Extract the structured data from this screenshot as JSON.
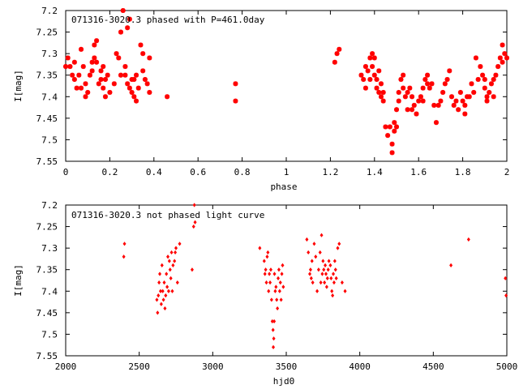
{
  "colors": {
    "points": "#ff0000",
    "axes": "#000000",
    "background": "#ffffff"
  },
  "chart_data": [
    {
      "type": "scatter",
      "title": "071316-3020.3 phased with P=461.0day",
      "xlabel": "phase",
      "ylabel": "I[mag]",
      "xlim": [
        0,
        2
      ],
      "ylim": [
        7.2,
        7.55
      ],
      "y_inverted": true,
      "grid": false,
      "marker": "asterisk",
      "xticks": [
        "0",
        "0.2",
        "0.4",
        "0.6",
        "0.8",
        "1",
        "1.2",
        "1.4",
        "1.6",
        "1.8",
        "2"
      ],
      "yticks": [
        "7.2",
        "7.25",
        "7.3",
        "7.35",
        "7.4",
        "7.45",
        "7.5",
        "7.55"
      ],
      "points": [
        [
          0.0,
          7.33
        ],
        [
          0.01,
          7.31
        ],
        [
          0.02,
          7.33
        ],
        [
          0.03,
          7.35
        ],
        [
          0.04,
          7.32
        ],
        [
          0.04,
          7.36
        ],
        [
          0.05,
          7.38
        ],
        [
          0.06,
          7.35
        ],
        [
          0.07,
          7.29
        ],
        [
          0.07,
          7.38
        ],
        [
          0.08,
          7.33
        ],
        [
          0.09,
          7.4
        ],
        [
          0.09,
          7.37
        ],
        [
          0.1,
          7.39
        ],
        [
          0.11,
          7.35
        ],
        [
          0.12,
          7.32
        ],
        [
          0.12,
          7.34
        ],
        [
          0.13,
          7.28
        ],
        [
          0.13,
          7.31
        ],
        [
          0.14,
          7.27
        ],
        [
          0.14,
          7.32
        ],
        [
          0.15,
          7.37
        ],
        [
          0.16,
          7.36
        ],
        [
          0.16,
          7.34
        ],
        [
          0.17,
          7.38
        ],
        [
          0.17,
          7.33
        ],
        [
          0.18,
          7.36
        ],
        [
          0.18,
          7.4
        ],
        [
          0.19,
          7.35
        ],
        [
          0.2,
          7.39
        ],
        [
          0.22,
          7.37
        ],
        [
          0.23,
          7.3
        ],
        [
          0.24,
          7.31
        ],
        [
          0.25,
          7.25
        ],
        [
          0.25,
          7.35
        ],
        [
          0.26,
          7.2
        ],
        [
          0.27,
          7.33
        ],
        [
          0.27,
          7.35
        ],
        [
          0.28,
          7.37
        ],
        [
          0.28,
          7.24
        ],
        [
          0.29,
          7.22
        ],
        [
          0.29,
          7.38
        ],
        [
          0.3,
          7.36
        ],
        [
          0.3,
          7.39
        ],
        [
          0.31,
          7.36
        ],
        [
          0.31,
          7.4
        ],
        [
          0.32,
          7.35
        ],
        [
          0.32,
          7.41
        ],
        [
          0.33,
          7.38
        ],
        [
          0.34,
          7.28
        ],
        [
          0.35,
          7.3
        ],
        [
          0.35,
          7.34
        ],
        [
          0.36,
          7.36
        ],
        [
          0.37,
          7.37
        ],
        [
          0.38,
          7.39
        ],
        [
          0.38,
          7.31
        ],
        [
          0.46,
          7.4
        ],
        [
          0.77,
          7.37
        ],
        [
          0.77,
          7.41
        ],
        [
          1.22,
          7.32
        ],
        [
          1.23,
          7.3
        ],
        [
          1.24,
          7.29
        ],
        [
          1.34,
          7.35
        ],
        [
          1.35,
          7.36
        ],
        [
          1.36,
          7.33
        ],
        [
          1.36,
          7.38
        ],
        [
          1.37,
          7.34
        ],
        [
          1.38,
          7.31
        ],
        [
          1.38,
          7.36
        ],
        [
          1.39,
          7.33
        ],
        [
          1.39,
          7.3
        ],
        [
          1.4,
          7.31
        ],
        [
          1.4,
          7.35
        ],
        [
          1.41,
          7.36
        ],
        [
          1.41,
          7.38
        ],
        [
          1.42,
          7.34
        ],
        [
          1.42,
          7.39
        ],
        [
          1.43,
          7.4
        ],
        [
          1.43,
          7.37
        ],
        [
          1.44,
          7.41
        ],
        [
          1.44,
          7.39
        ],
        [
          1.45,
          7.47
        ],
        [
          1.46,
          7.49
        ],
        [
          1.47,
          7.47
        ],
        [
          1.48,
          7.53
        ],
        [
          1.48,
          7.51
        ],
        [
          1.49,
          7.48
        ],
        [
          1.49,
          7.46
        ],
        [
          1.5,
          7.47
        ],
        [
          1.5,
          7.43
        ],
        [
          1.51,
          7.39
        ],
        [
          1.51,
          7.41
        ],
        [
          1.52,
          7.36
        ],
        [
          1.53,
          7.35
        ],
        [
          1.53,
          7.38
        ],
        [
          1.54,
          7.4
        ],
        [
          1.55,
          7.43
        ],
        [
          1.55,
          7.39
        ],
        [
          1.56,
          7.38
        ],
        [
          1.57,
          7.4
        ],
        [
          1.57,
          7.43
        ],
        [
          1.58,
          7.42
        ],
        [
          1.59,
          7.44
        ],
        [
          1.6,
          7.41
        ],
        [
          1.61,
          7.4
        ],
        [
          1.62,
          7.41
        ],
        [
          1.62,
          7.38
        ],
        [
          1.63,
          7.36
        ],
        [
          1.64,
          7.37
        ],
        [
          1.64,
          7.35
        ],
        [
          1.65,
          7.38
        ],
        [
          1.66,
          7.37
        ],
        [
          1.67,
          7.42
        ],
        [
          1.68,
          7.46
        ],
        [
          1.69,
          7.42
        ],
        [
          1.7,
          7.41
        ],
        [
          1.71,
          7.39
        ],
        [
          1.72,
          7.37
        ],
        [
          1.73,
          7.36
        ],
        [
          1.74,
          7.34
        ],
        [
          1.75,
          7.4
        ],
        [
          1.76,
          7.42
        ],
        [
          1.77,
          7.41
        ],
        [
          1.78,
          7.43
        ],
        [
          1.79,
          7.39
        ],
        [
          1.8,
          7.41
        ],
        [
          1.81,
          7.44
        ],
        [
          1.81,
          7.42
        ],
        [
          1.82,
          7.4
        ],
        [
          1.83,
          7.4
        ],
        [
          1.84,
          7.37
        ],
        [
          1.85,
          7.39
        ],
        [
          1.86,
          7.31
        ],
        [
          1.87,
          7.36
        ],
        [
          1.88,
          7.33
        ],
        [
          1.89,
          7.35
        ],
        [
          1.9,
          7.36
        ],
        [
          1.9,
          7.38
        ],
        [
          1.91,
          7.4
        ],
        [
          1.91,
          7.41
        ],
        [
          1.92,
          7.39
        ],
        [
          1.93,
          7.37
        ],
        [
          1.94,
          7.4
        ],
        [
          1.94,
          7.36
        ],
        [
          1.95,
          7.35
        ],
        [
          1.96,
          7.33
        ],
        [
          1.97,
          7.31
        ],
        [
          1.98,
          7.28
        ],
        [
          1.98,
          7.32
        ],
        [
          1.99,
          7.3
        ],
        [
          2.0,
          7.31
        ]
      ]
    },
    {
      "type": "scatter",
      "title": "071316-3020.3 not phased light curve",
      "xlabel": "hjd0",
      "ylabel": "I[mag]",
      "xlim": [
        2000,
        5000
      ],
      "ylim": [
        7.2,
        7.55
      ],
      "y_inverted": true,
      "grid": false,
      "marker": "diamond",
      "xticks": [
        "2000",
        "2500",
        "3000",
        "3500",
        "4000",
        "4500",
        "5000"
      ],
      "yticks": [
        "7.2",
        "7.25",
        "7.3",
        "7.35",
        "7.4",
        "7.45",
        "7.5",
        "7.55"
      ],
      "points": [
        [
          2395,
          7.32
        ],
        [
          2400,
          7.29
        ],
        [
          2620,
          7.42
        ],
        [
          2625,
          7.45
        ],
        [
          2630,
          7.41
        ],
        [
          2635,
          7.38
        ],
        [
          2640,
          7.36
        ],
        [
          2645,
          7.4
        ],
        [
          2650,
          7.43
        ],
        [
          2655,
          7.34
        ],
        [
          2660,
          7.4
        ],
        [
          2665,
          7.42
        ],
        [
          2670,
          7.38
        ],
        [
          2675,
          7.44
        ],
        [
          2680,
          7.41
        ],
        [
          2685,
          7.36
        ],
        [
          2690,
          7.39
        ],
        [
          2695,
          7.32
        ],
        [
          2700,
          7.4
        ],
        [
          2705,
          7.33
        ],
        [
          2710,
          7.35
        ],
        [
          2715,
          7.37
        ],
        [
          2720,
          7.31
        ],
        [
          2725,
          7.4
        ],
        [
          2730,
          7.34
        ],
        [
          2740,
          7.33
        ],
        [
          2745,
          7.31
        ],
        [
          2750,
          7.3
        ],
        [
          2760,
          7.38
        ],
        [
          2775,
          7.29
        ],
        [
          2860,
          7.35
        ],
        [
          2870,
          7.25
        ],
        [
          2875,
          7.2
        ],
        [
          2880,
          7.24
        ],
        [
          3320,
          7.3
        ],
        [
          3350,
          7.33
        ],
        [
          3355,
          7.36
        ],
        [
          3360,
          7.35
        ],
        [
          3365,
          7.38
        ],
        [
          3370,
          7.32
        ],
        [
          3375,
          7.31
        ],
        [
          3380,
          7.4
        ],
        [
          3385,
          7.36
        ],
        [
          3390,
          7.38
        ],
        [
          3395,
          7.35
        ],
        [
          3400,
          7.42
        ],
        [
          3405,
          7.47
        ],
        [
          3410,
          7.49
        ],
        [
          3412,
          7.53
        ],
        [
          3415,
          7.51
        ],
        [
          3418,
          7.47
        ],
        [
          3420,
          7.36
        ],
        [
          3425,
          7.4
        ],
        [
          3430,
          7.39
        ],
        [
          3435,
          7.42
        ],
        [
          3440,
          7.44
        ],
        [
          3445,
          7.37
        ],
        [
          3450,
          7.35
        ],
        [
          3455,
          7.4
        ],
        [
          3460,
          7.38
        ],
        [
          3465,
          7.42
        ],
        [
          3470,
          7.36
        ],
        [
          3475,
          7.34
        ],
        [
          3480,
          7.39
        ],
        [
          3640,
          7.28
        ],
        [
          3650,
          7.31
        ],
        [
          3660,
          7.36
        ],
        [
          3665,
          7.35
        ],
        [
          3670,
          7.37
        ],
        [
          3675,
          7.33
        ],
        [
          3680,
          7.38
        ],
        [
          3690,
          7.29
        ],
        [
          3700,
          7.32
        ],
        [
          3710,
          7.4
        ],
        [
          3720,
          7.35
        ],
        [
          3730,
          7.31
        ],
        [
          3735,
          7.38
        ],
        [
          3740,
          7.27
        ],
        [
          3745,
          7.36
        ],
        [
          3750,
          7.33
        ],
        [
          3755,
          7.35
        ],
        [
          3760,
          7.38
        ],
        [
          3765,
          7.34
        ],
        [
          3770,
          7.36
        ],
        [
          3775,
          7.39
        ],
        [
          3780,
          7.37
        ],
        [
          3785,
          7.35
        ],
        [
          3790,
          7.33
        ],
        [
          3800,
          7.34
        ],
        [
          3805,
          7.37
        ],
        [
          3810,
          7.4
        ],
        [
          3815,
          7.41
        ],
        [
          3820,
          7.36
        ],
        [
          3825,
          7.38
        ],
        [
          3830,
          7.33
        ],
        [
          3835,
          7.35
        ],
        [
          3840,
          7.37
        ],
        [
          3850,
          7.3
        ],
        [
          3860,
          7.29
        ],
        [
          3880,
          7.38
        ],
        [
          3900,
          7.4
        ],
        [
          4620,
          7.34
        ],
        [
          4740,
          7.28
        ],
        [
          4990,
          7.37
        ],
        [
          4995,
          7.41
        ]
      ]
    }
  ]
}
